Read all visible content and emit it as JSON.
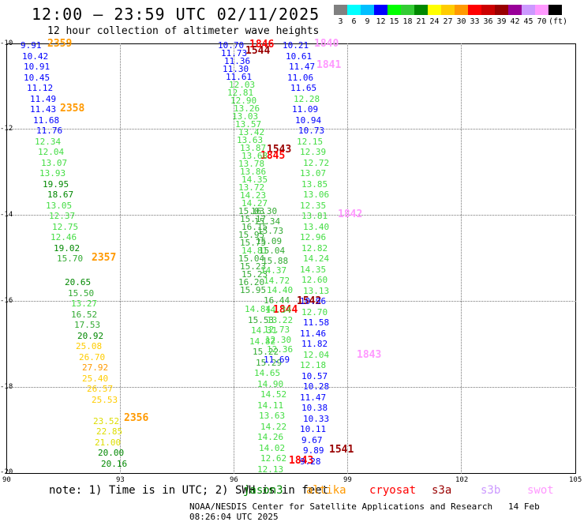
{
  "header": {
    "title": "12:00 – 23:59 UTC 02/11/2025",
    "subtitle": "12 hour collection of altimeter wave heights"
  },
  "colorbar": {
    "labels": [
      "3",
      "6",
      "9",
      "12",
      "15",
      "18",
      "21",
      "24",
      "27",
      "30",
      "33",
      "36",
      "39",
      "42",
      "45",
      "70",
      "(ft)"
    ],
    "colors": [
      "#808080",
      "#00ffff",
      "#00bfff",
      "#0000ff",
      "#00ff00",
      "#33cc33",
      "#008800",
      "#ffff00",
      "#ffcc00",
      "#ff9900",
      "#ff0000",
      "#cc0000",
      "#990000",
      "#990099",
      "#cc99ff",
      "#ff99ff",
      "#000000"
    ]
  },
  "axes": {
    "lon_labels": [
      "90",
      "93",
      "96",
      "99",
      "102",
      "105"
    ],
    "lat_labels": [
      "-10",
      "-12",
      "-14",
      "-16",
      "-18",
      "-20"
    ]
  },
  "tracks": {
    "t2359": "2359",
    "t2358": "2358",
    "t2357": "2357",
    "t2356": "2356",
    "t1846": "1846",
    "t1544": "1544",
    "t1840": "1840",
    "t1841": "1841",
    "t1543": "1543",
    "t1845": "1845",
    "t1842": "1842",
    "t1542": "1542",
    "t1844": "1844",
    "t1843a": "1843",
    "t1843b": "1843",
    "t1541": "1541"
  },
  "footer": {
    "note": "note: 1) Time is in UTC; 2) SWH is in feet",
    "satellites": [
      "jason3",
      "altika",
      "cryosat",
      "s3a",
      "s3b",
      "swot"
    ],
    "credit": "NOAA/NESDIS Center for Satellite Applications and Research",
    "timestamp": "14 Feb 08:26:04 UTC 2025"
  }
}
